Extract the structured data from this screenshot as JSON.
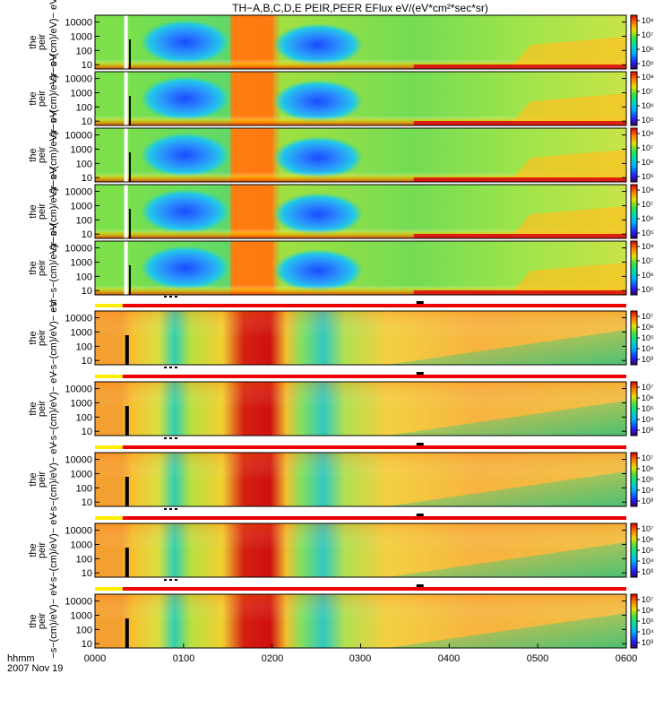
{
  "title": "TH−A,B,C,D,E PEIR,PEER EFlux eV/(eV*cm²*sec*sr)",
  "footer": {
    "label_line1": "hhmm",
    "label_line2": "2007 Nov 19"
  },
  "x_ticks": [
    "0000",
    "0100",
    "0200",
    "0300",
    "0400",
    "0500",
    "0600"
  ],
  "colors": {
    "bar_yellow": "#ffee00",
    "bar_red": "#ee0000",
    "frame": "#000000"
  },
  "chart_data": [
    {
      "type": "heatmap",
      "panel": "A",
      "species": "ion",
      "ylabel_lines": [
        "the",
        "peir",
        "−sr−s−(cm)/eV)− eV"
      ],
      "yticks": [
        "10000",
        "1000",
        "100",
        "10"
      ],
      "yscale": "log",
      "ylim": [
        5,
        30000
      ],
      "xlim": [
        "0000",
        "0600"
      ],
      "colorbar_ticks": [
        "10⁸",
        "10⁷",
        "10⁶",
        "10⁵"
      ]
    },
    {
      "type": "heatmap",
      "panel": "B",
      "species": "ion",
      "ylabel_lines": [
        "the",
        "peir",
        "−sr−s−(cm)/eV)− eV"
      ],
      "yticks": [
        "10000",
        "1000",
        "100",
        "10"
      ],
      "yscale": "log",
      "ylim": [
        5,
        30000
      ],
      "xlim": [
        "0000",
        "0600"
      ],
      "colorbar_ticks": [
        "10⁸",
        "10⁷",
        "10⁶",
        "10⁵"
      ]
    },
    {
      "type": "heatmap",
      "panel": "C",
      "species": "ion",
      "ylabel_lines": [
        "the",
        "peir",
        "−sr−s−(cm)/eV)− eV"
      ],
      "yticks": [
        "10000",
        "1000",
        "100",
        "10"
      ],
      "yscale": "log",
      "ylim": [
        5,
        30000
      ],
      "xlim": [
        "0000",
        "0600"
      ],
      "colorbar_ticks": [
        "10⁸",
        "10⁷",
        "10⁶",
        "10⁵"
      ]
    },
    {
      "type": "heatmap",
      "panel": "D",
      "species": "ion",
      "ylabel_lines": [
        "the",
        "peir",
        "−sr−s−(cm)/eV)− eV"
      ],
      "yticks": [
        "10000",
        "1000",
        "100",
        "10"
      ],
      "yscale": "log",
      "ylim": [
        5,
        30000
      ],
      "xlim": [
        "0000",
        "0600"
      ],
      "colorbar_ticks": [
        "10⁸",
        "10⁷",
        "10⁶",
        "10⁵"
      ]
    },
    {
      "type": "heatmap",
      "panel": "E",
      "species": "ion",
      "ylabel_lines": [
        "the",
        "peir",
        "−sr−s−(cm)/eV)− eV"
      ],
      "yticks": [
        "10000",
        "1000",
        "100",
        "10"
      ],
      "yscale": "log",
      "ylim": [
        5,
        30000
      ],
      "xlim": [
        "0000",
        "0600"
      ],
      "colorbar_ticks": [
        "10⁸",
        "10⁷",
        "10⁶",
        "10⁵"
      ]
    },
    {
      "type": "heatmap",
      "panel": "A",
      "species": "electron",
      "ylabel_lines": [
        "the",
        "peir",
        "−s−(cm)/eV)− eV"
      ],
      "yticks": [
        "10000",
        "1000",
        "100",
        "10"
      ],
      "yscale": "log",
      "ylim": [
        5,
        30000
      ],
      "xlim": [
        "0000",
        "0600"
      ],
      "colorbar_ticks": [
        "10⁷",
        "10⁶",
        "10⁵",
        "10⁴",
        "10³"
      ]
    },
    {
      "type": "heatmap",
      "panel": "B",
      "species": "electron",
      "ylabel_lines": [
        "the",
        "peir",
        "−s−(cm)/eV)− eV"
      ],
      "yticks": [
        "10000",
        "1000",
        "100",
        "10"
      ],
      "yscale": "log",
      "ylim": [
        5,
        30000
      ],
      "xlim": [
        "0000",
        "0600"
      ],
      "colorbar_ticks": [
        "10⁷",
        "10⁶",
        "10⁵",
        "10⁴",
        "10³"
      ]
    },
    {
      "type": "heatmap",
      "panel": "C",
      "species": "electron",
      "ylabel_lines": [
        "the",
        "peir",
        "−s−(cm)/eV)− eV"
      ],
      "yticks": [
        "10000",
        "1000",
        "100",
        "10"
      ],
      "yscale": "log",
      "ylim": [
        5,
        30000
      ],
      "xlim": [
        "0000",
        "0600"
      ],
      "colorbar_ticks": [
        "10⁷",
        "10⁶",
        "10⁵",
        "10⁴",
        "10³"
      ]
    },
    {
      "type": "heatmap",
      "panel": "D",
      "species": "electron",
      "ylabel_lines": [
        "the",
        "peir",
        "−s−(cm)/eV)− eV"
      ],
      "yticks": [
        "10000",
        "1000",
        "100",
        "10"
      ],
      "yscale": "log",
      "ylim": [
        5,
        30000
      ],
      "xlim": [
        "0000",
        "0600"
      ],
      "colorbar_ticks": [
        "10⁷",
        "10⁶",
        "10⁵",
        "10⁴",
        "10³"
      ]
    },
    {
      "type": "heatmap",
      "panel": "E",
      "species": "electron",
      "ylabel_lines": [
        "the",
        "peir",
        "−s−(cm)/eV)− eV"
      ],
      "yticks": [
        "10000",
        "1000",
        "100",
        "10"
      ],
      "yscale": "log",
      "ylim": [
        5,
        30000
      ],
      "xlim": [
        "0000",
        "0600"
      ],
      "colorbar_ticks": [
        "10⁷",
        "10⁶",
        "10⁵",
        "10⁴",
        "10³"
      ]
    }
  ]
}
